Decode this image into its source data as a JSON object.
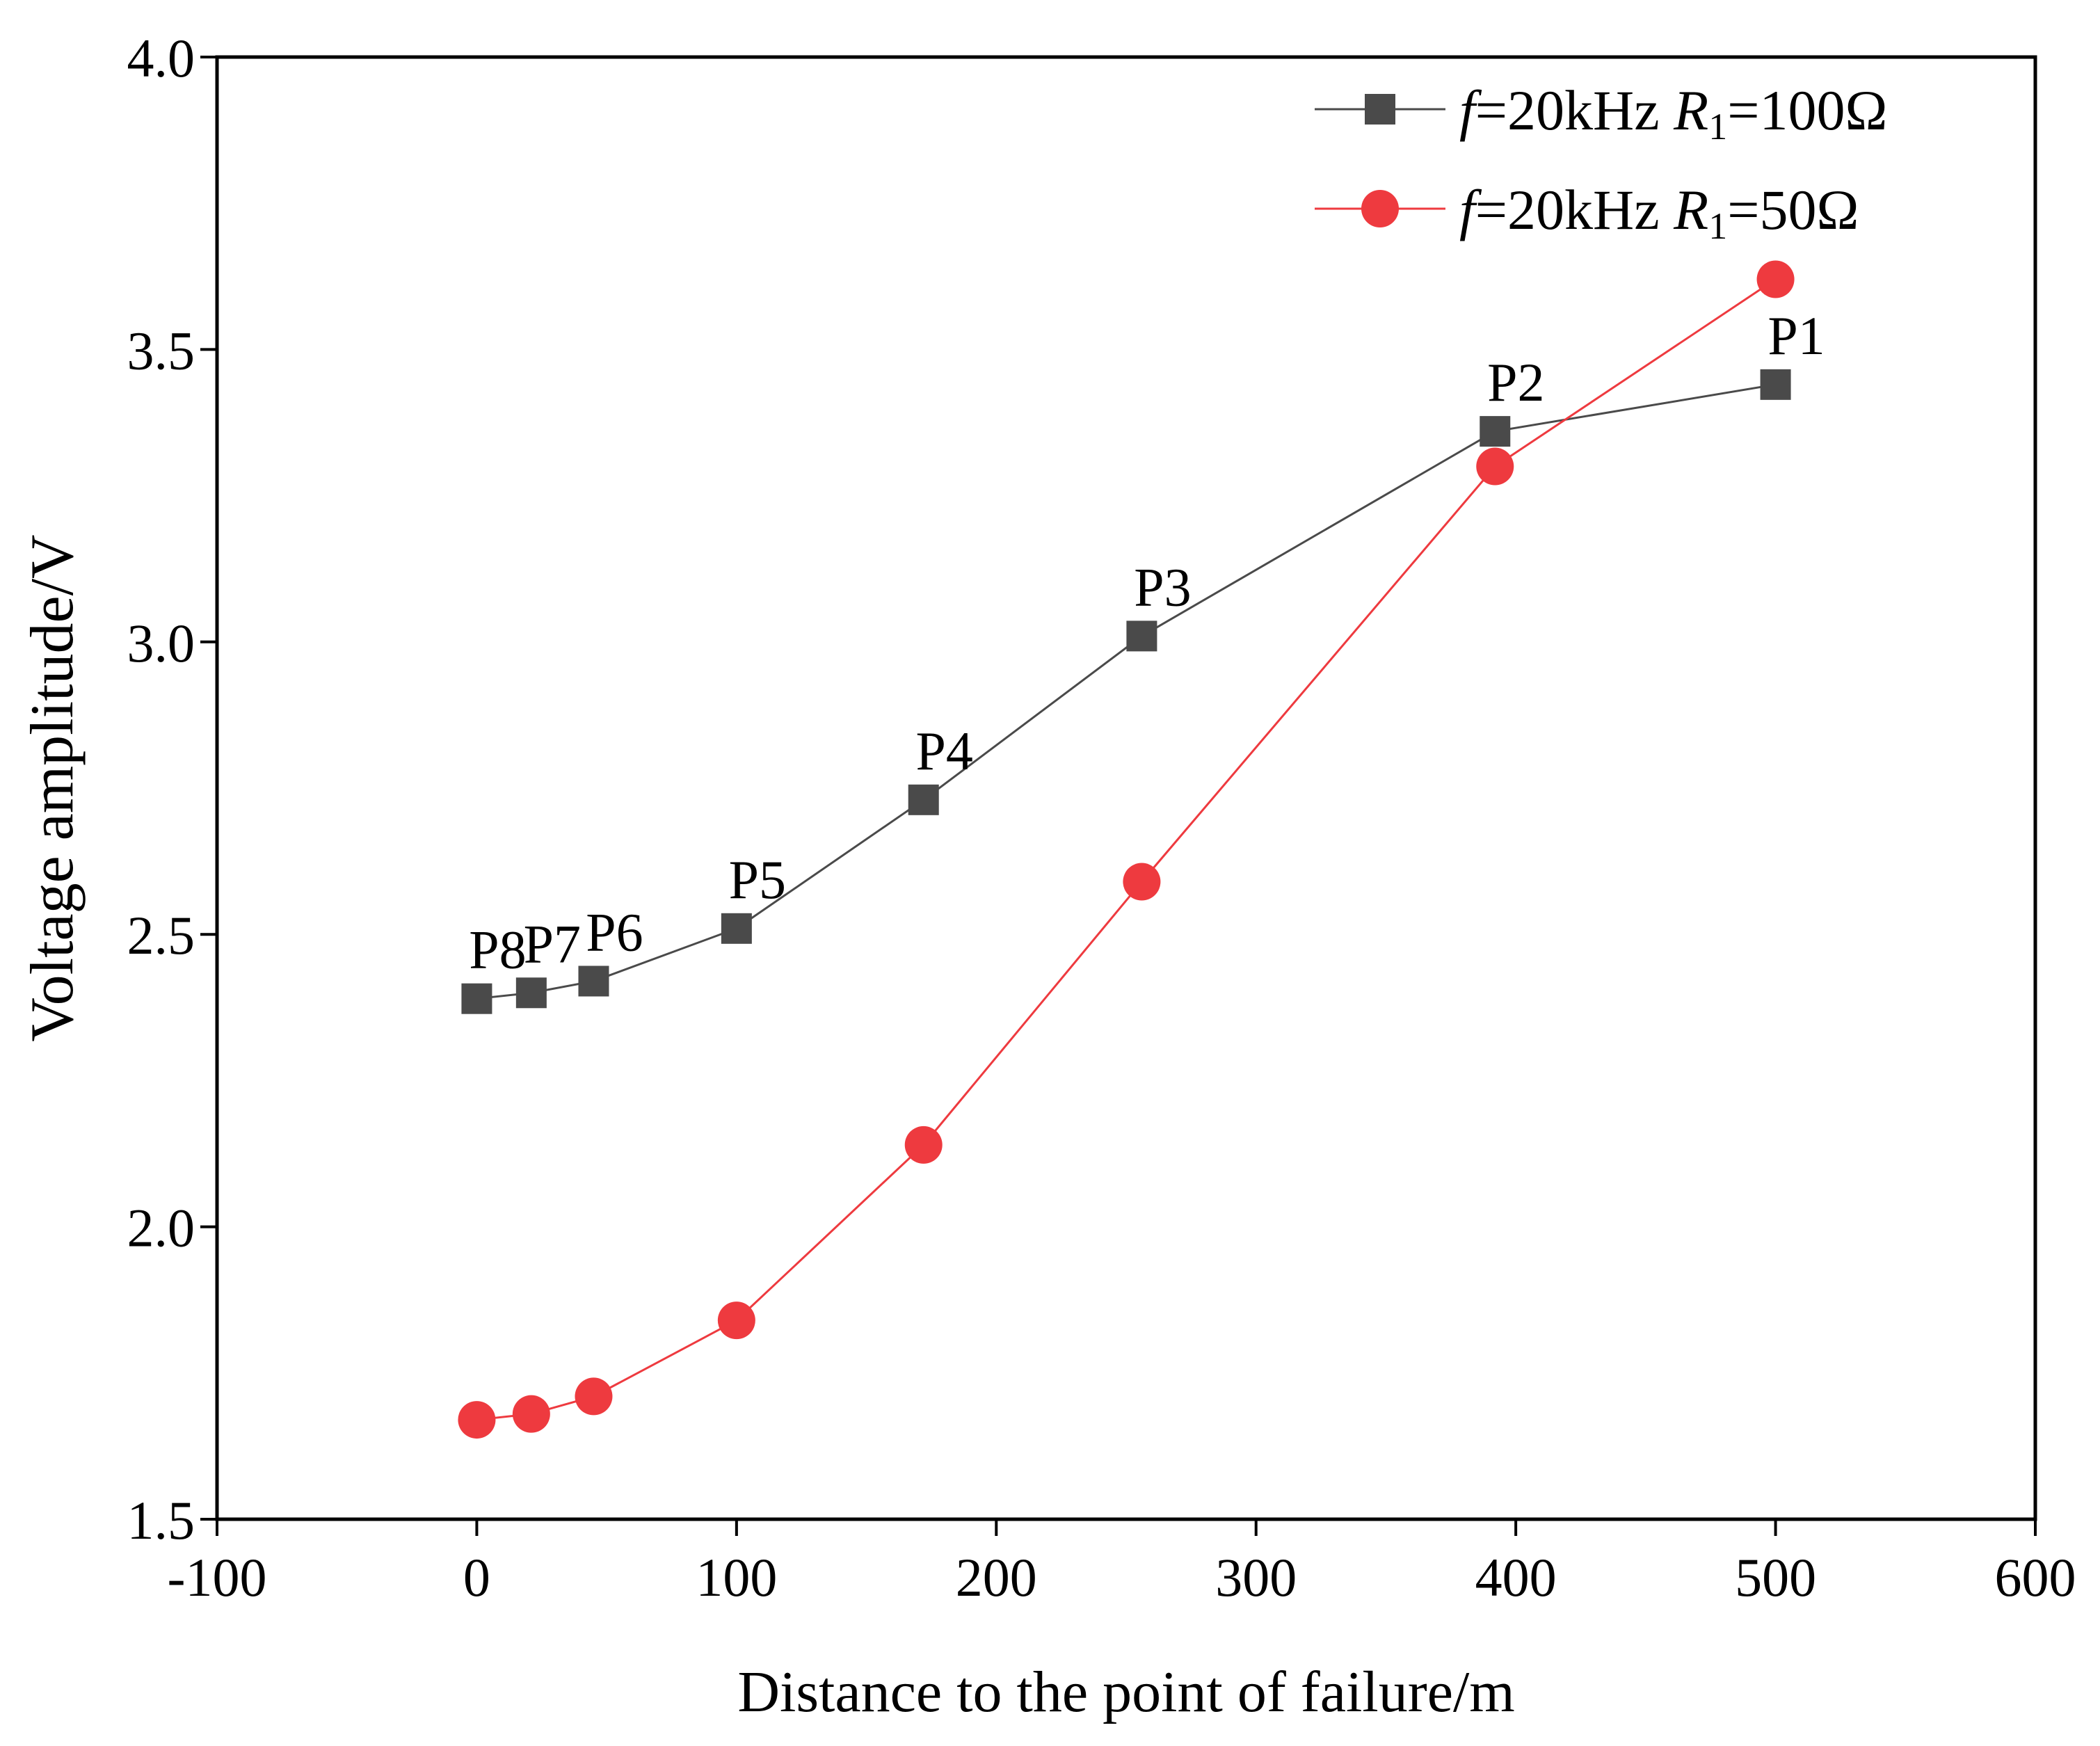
{
  "chart_data": {
    "type": "line",
    "xlabel": "Distance to the point of failure/m",
    "ylabel": "Voltage amplitude/V",
    "xlim": [
      -100,
      600
    ],
    "ylim": [
      1.5,
      4.0
    ],
    "x_ticks": [
      "-100",
      "0",
      "100",
      "200",
      "300",
      "400",
      "500",
      "600"
    ],
    "y_ticks": [
      "1.5",
      "2.0",
      "2.5",
      "3.0",
      "3.5",
      "4.0"
    ],
    "grid": false,
    "legend_position": "top-right",
    "series": [
      {
        "name": "f=20kHz R1=100Ω",
        "legend": {
          "f": "f",
          "freq": "=20kHz ",
          "r": "R",
          "sub": "1",
          "rest": "=100Ω"
        },
        "color": "#4a4a4a",
        "marker": "square",
        "x": [
          0,
          21,
          45,
          100,
          172,
          256,
          392,
          500
        ],
        "y": [
          2.39,
          2.4,
          2.42,
          2.51,
          2.73,
          3.01,
          3.36,
          3.44
        ],
        "point_labels": [
          "P8",
          "P7",
          "P6",
          "P5",
          "P4",
          "P3",
          "P2",
          "P1"
        ]
      },
      {
        "name": "f=20kHz R1=50Ω",
        "legend": {
          "f": "f",
          "freq": "=20kHz ",
          "r": "R",
          "sub": "1",
          "rest": "=50Ω"
        },
        "color": "#ee3a3f",
        "marker": "circle",
        "x": [
          0,
          21,
          45,
          100,
          172,
          256,
          392,
          500
        ],
        "y": [
          1.67,
          1.68,
          1.71,
          1.84,
          2.14,
          2.59,
          3.3,
          3.62
        ]
      }
    ]
  }
}
